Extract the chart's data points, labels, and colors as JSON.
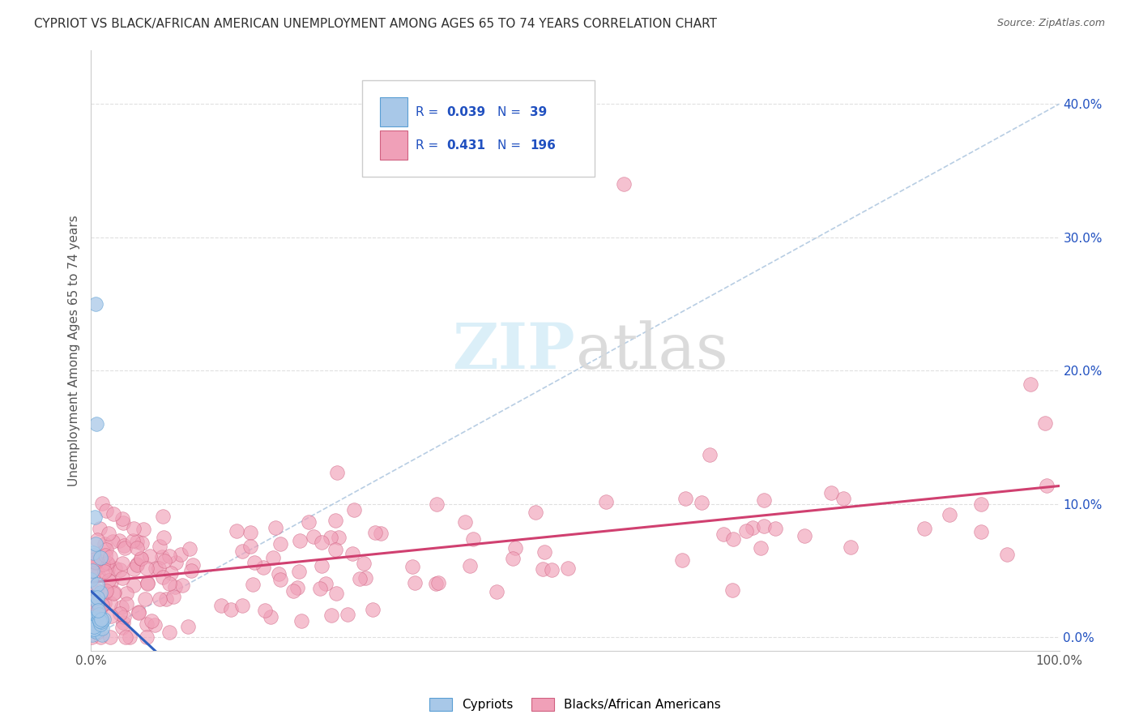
{
  "title": "CYPRIOT VS BLACK/AFRICAN AMERICAN UNEMPLOYMENT AMONG AGES 65 TO 74 YEARS CORRELATION CHART",
  "source": "Source: ZipAtlas.com",
  "ylabel": "Unemployment Among Ages 65 to 74 years",
  "xlim": [
    0,
    1.0
  ],
  "ylim": [
    -0.01,
    0.44
  ],
  "xtick_positions": [
    0.0,
    1.0
  ],
  "xtick_labels": [
    "0.0%",
    "100.0%"
  ],
  "ytick_positions": [
    0.0,
    0.1,
    0.2,
    0.3,
    0.4
  ],
  "ytick_labels": [
    "0.0%",
    "10.0%",
    "20.0%",
    "30.0%",
    "40.0%"
  ],
  "cypriot_color": "#a8c8e8",
  "cypriot_edge": "#5a9fd4",
  "black_color": "#f0a0b8",
  "black_edge": "#d06080",
  "trendline_cypriot_color": "#3060c0",
  "trendline_black_color": "#d04070",
  "diagonal_color": "#b0c8e0",
  "background_color": "#ffffff",
  "grid_color": "#e0e0e0",
  "title_color": "#303030",
  "source_color": "#606060",
  "legend_color": "#2050c0",
  "watermark_color": "#d8eef8"
}
